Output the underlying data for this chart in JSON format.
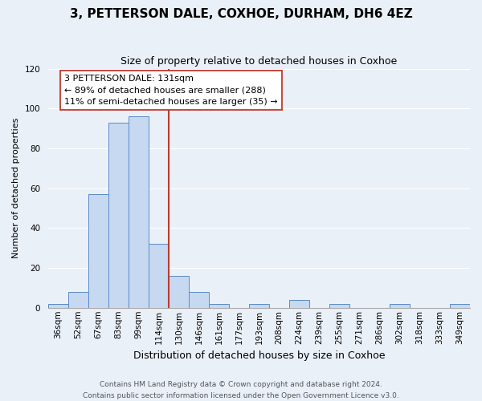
{
  "title": "3, PETTERSON DALE, COXHOE, DURHAM, DH6 4EZ",
  "subtitle": "Size of property relative to detached houses in Coxhoe",
  "xlabel": "Distribution of detached houses by size in Coxhoe",
  "ylabel": "Number of detached properties",
  "bar_labels": [
    "36sqm",
    "52sqm",
    "67sqm",
    "83sqm",
    "99sqm",
    "114sqm",
    "130sqm",
    "146sqm",
    "161sqm",
    "177sqm",
    "193sqm",
    "208sqm",
    "224sqm",
    "239sqm",
    "255sqm",
    "271sqm",
    "286sqm",
    "302sqm",
    "318sqm",
    "333sqm",
    "349sqm"
  ],
  "bar_values": [
    2,
    8,
    57,
    93,
    96,
    32,
    16,
    8,
    2,
    0,
    2,
    0,
    4,
    0,
    2,
    0,
    0,
    2,
    0,
    0,
    2
  ],
  "bar_color": "#c6d9f1",
  "bar_edge_color": "#5b8ac7",
  "vline_color": "#c0392b",
  "vline_pos": 6,
  "ylim": [
    0,
    120
  ],
  "yticks": [
    0,
    20,
    40,
    60,
    80,
    100,
    120
  ],
  "annotation_title": "3 PETTERSON DALE: 131sqm",
  "annotation_line1": "← 89% of detached houses are smaller (288)",
  "annotation_line2": "11% of semi-detached houses are larger (35) →",
  "annotation_box_color": "#ffffff",
  "annotation_box_edge": "#c0392b",
  "footer_line1": "Contains HM Land Registry data © Crown copyright and database right 2024.",
  "footer_line2": "Contains public sector information licensed under the Open Government Licence v3.0.",
  "bg_color": "#eaf0f8",
  "grid_color": "#ffffff",
  "title_fontsize": 11,
  "subtitle_fontsize": 9,
  "ylabel_fontsize": 8,
  "xlabel_fontsize": 9,
  "tick_fontsize": 7.5,
  "annot_fontsize": 8,
  "footer_fontsize": 6.5
}
